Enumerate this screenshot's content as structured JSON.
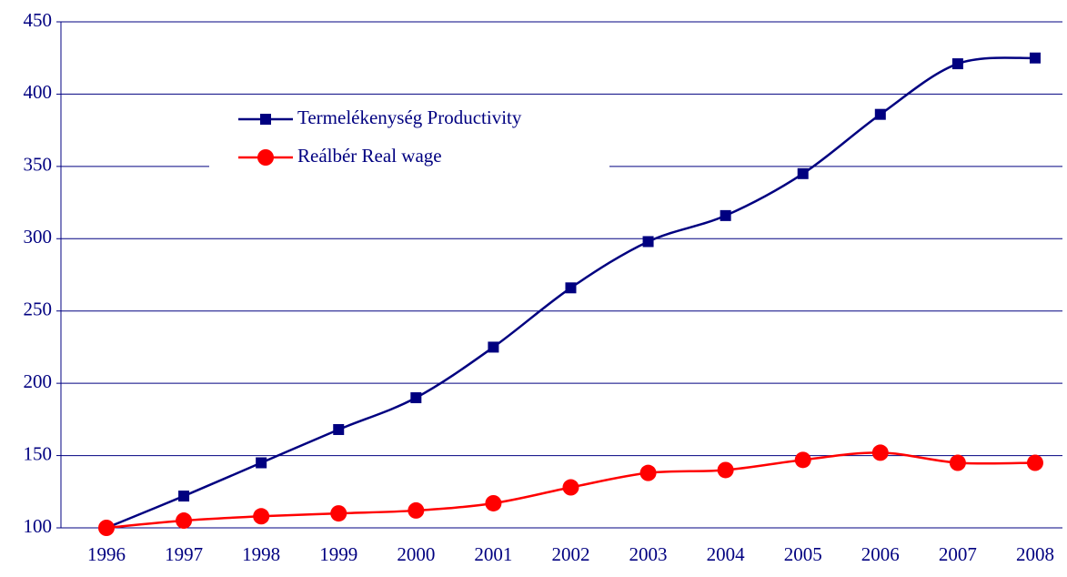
{
  "chart_data": {
    "type": "line",
    "categories": [
      "1996",
      "1997",
      "1998",
      "1999",
      "2000",
      "2001",
      "2002",
      "2003",
      "2004",
      "2005",
      "2006",
      "2007",
      "2008"
    ],
    "series": [
      {
        "name": "Termelékenység Productivity",
        "color": "#000080",
        "marker": "square",
        "values": [
          100,
          122,
          145,
          168,
          190,
          225,
          266,
          298,
          316,
          345,
          386,
          421,
          425
        ]
      },
      {
        "name": "Reálbér Real wage",
        "color": "#ff0000",
        "marker": "circle",
        "values": [
          100,
          105,
          108,
          110,
          112,
          117,
          128,
          138,
          140,
          147,
          152,
          145,
          145
        ]
      }
    ],
    "ylim": [
      100,
      450
    ],
    "yticks": [
      100,
      150,
      200,
      250,
      300,
      350,
      400,
      450
    ],
    "grid": true
  }
}
